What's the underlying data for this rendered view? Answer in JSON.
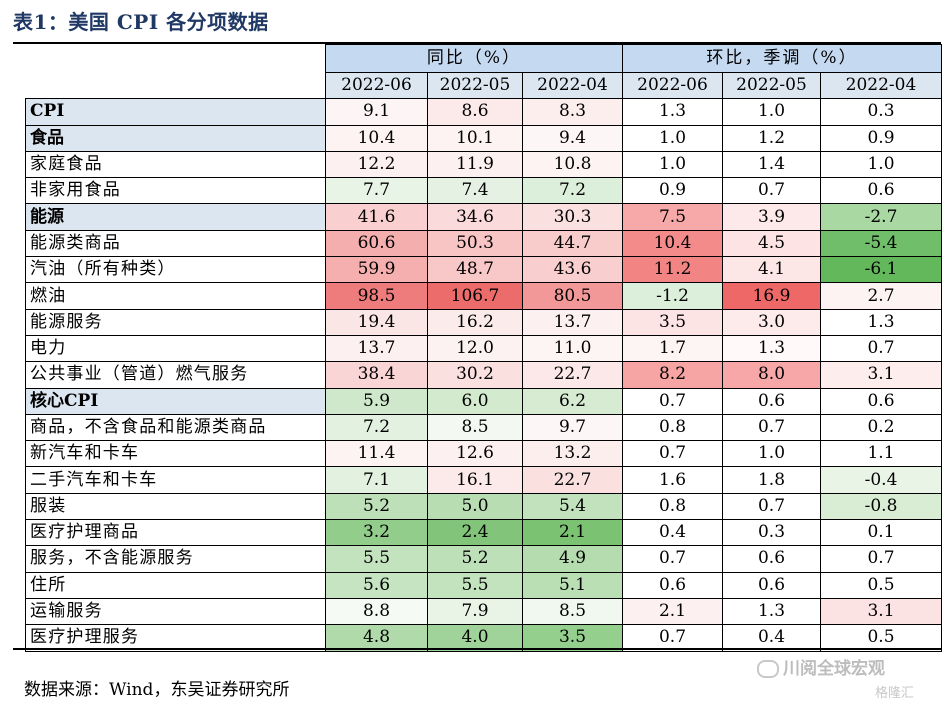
{
  "title": "表1：美国 CPI 各分项数据",
  "header": {
    "group_yoy": "同比（%）",
    "group_mom": "环比，季调（%）",
    "periods": [
      "2022-06",
      "2022-05",
      "2022-04",
      "2022-06",
      "2022-05",
      "2022-04"
    ]
  },
  "rows": [
    {
      "label": "CPI",
      "highlight": true,
      "values": [
        "9.1",
        "8.6",
        "8.3",
        "1.3",
        "1.0",
        "0.3"
      ],
      "colors": [
        "#fdf5f5",
        "#fce9e9",
        "#fdeeee",
        "#ffffff",
        "#ffffff",
        "#ffffff"
      ]
    },
    {
      "label": "食品",
      "highlight": true,
      "values": [
        "10.4",
        "10.1",
        "9.4",
        "1.0",
        "1.2",
        "0.9"
      ],
      "colors": [
        "#fdf3f3",
        "#fdf3f3",
        "#fdf6f6",
        "#ffffff",
        "#ffffff",
        "#ffffff"
      ]
    },
    {
      "label": "家庭食品",
      "highlight": false,
      "values": [
        "12.2",
        "11.9",
        "10.8",
        "1.0",
        "1.4",
        "1.0"
      ],
      "colors": [
        "#fdf0f0",
        "#fdf0f0",
        "#fdf3f3",
        "#ffffff",
        "#ffffff",
        "#ffffff"
      ]
    },
    {
      "label": "非家用食品",
      "highlight": false,
      "values": [
        "7.7",
        "7.4",
        "7.2",
        "0.9",
        "0.7",
        "0.6"
      ],
      "colors": [
        "#e8f4e6",
        "#e5f2e3",
        "#dcefda",
        "#ffffff",
        "#ffffff",
        "#ffffff"
      ]
    },
    {
      "label": "能源",
      "highlight": true,
      "values": [
        "41.6",
        "34.6",
        "30.3",
        "7.5",
        "3.9",
        "-2.7"
      ],
      "colors": [
        "#f9cfcf",
        "#fadada",
        "#fbe0e0",
        "#f7a9a9",
        "#fde9e9",
        "#a9d8a3"
      ]
    },
    {
      "label": "能源类商品",
      "highlight": false,
      "values": [
        "60.6",
        "50.3",
        "44.7",
        "10.4",
        "4.5",
        "-5.4"
      ],
      "colors": [
        "#f5aeae",
        "#f8c4c4",
        "#f9cccc",
        "#f38b8b",
        "#fde3e3",
        "#70be69"
      ]
    },
    {
      "label": "汽油（所有种类）",
      "highlight": false,
      "values": [
        "59.9",
        "48.7",
        "43.6",
        "11.2",
        "4.1",
        "-6.1"
      ],
      "colors": [
        "#f5afaf",
        "#f8c7c7",
        "#f9cece",
        "#f28484",
        "#fde6e6",
        "#63b85c"
      ]
    },
    {
      "label": "燃油",
      "highlight": false,
      "values": [
        "98.5",
        "106.7",
        "80.5",
        "-1.2",
        "16.9",
        "2.7"
      ],
      "colors": [
        "#ef7c7c",
        "#ec6b6b",
        "#f39898",
        "#dcefda",
        "#ee6868",
        "#fdf3f3"
      ]
    },
    {
      "label": "能源服务",
      "highlight": false,
      "values": [
        "19.4",
        "16.2",
        "13.7",
        "3.5",
        "3.0",
        "1.3"
      ],
      "colors": [
        "#fbe6e6",
        "#fcebeb",
        "#fdf0f0",
        "#fde4e4",
        "#fdeaea",
        "#ffffff"
      ]
    },
    {
      "label": "电力",
      "highlight": false,
      "values": [
        "13.7",
        "12.0",
        "11.0",
        "1.7",
        "1.3",
        "0.7"
      ],
      "colors": [
        "#fdf0f0",
        "#fdf2f2",
        "#fdf4f4",
        "#fdf4f4",
        "#fff9f9",
        "#ffffff"
      ]
    },
    {
      "label": "公共事业（管道）燃气服务",
      "highlight": false,
      "values": [
        "38.4",
        "30.2",
        "22.7",
        "8.2",
        "8.0",
        "3.1"
      ],
      "colors": [
        "#fad5d5",
        "#fbe0e0",
        "#fce8e8",
        "#f6a4a4",
        "#f7a7a7",
        "#fdeded"
      ]
    },
    {
      "label": "核心CPI",
      "highlight": true,
      "values": [
        "5.9",
        "6.0",
        "6.2",
        " 0.7",
        "0.6",
        "0.6"
      ],
      "colors": [
        "#cfe8cb",
        "#d3eacf",
        "#d6ebd2",
        "#ffffff",
        "#ffffff",
        "#ffffff"
      ]
    },
    {
      "label": "商品，不含食品和能源类商品",
      "highlight": false,
      "values": [
        "7.2",
        "8.5",
        "9.7",
        "0.8",
        "0.7",
        "0.2"
      ],
      "colors": [
        "#e3f1e1",
        "#f3f9f2",
        "#fdf6f6",
        "#ffffff",
        "#ffffff",
        "#ffffff"
      ]
    },
    {
      "label": "新汽车和卡车",
      "highlight": false,
      "values": [
        "11.4",
        "12.6",
        "13.2",
        "0.7",
        "1.0",
        "1.1"
      ],
      "colors": [
        "#fdf3f3",
        "#fdf0f0",
        "#fdeeee",
        "#ffffff",
        "#ffffff",
        "#ffffff"
      ]
    },
    {
      "label": "二手汽车和卡车",
      "highlight": false,
      "values": [
        "7.1",
        "16.1",
        "22.7",
        "1.6",
        "1.8",
        "-0.4"
      ],
      "colors": [
        "#e3f1e1",
        "#fceaea",
        "#fbe0e0",
        "#ffffff",
        "#ffffff",
        "#e9f4e7"
      ]
    },
    {
      "label": "服装",
      "highlight": false,
      "values": [
        "5.2",
        "5.0",
        "5.4",
        "0.8",
        "0.7",
        "-0.8"
      ],
      "colors": [
        "#bde0b8",
        "#b8ddb3",
        "#c1e2bc",
        "#ffffff",
        "#ffffff",
        "#d8edd4"
      ]
    },
    {
      "label": "医疗护理商品",
      "highlight": false,
      "values": [
        "3.2",
        "2.4",
        "2.1",
        "0.4",
        "0.3",
        "0.1"
      ],
      "colors": [
        "#93cd8c",
        "#82c57a",
        "#7bc273",
        "#ffffff",
        "#ffffff",
        "#ffffff"
      ]
    },
    {
      "label": "服务，不含能源服务",
      "highlight": false,
      "values": [
        "5.5",
        "5.2",
        "4.9",
        "0.7",
        "0.6",
        "0.7"
      ],
      "colors": [
        "#c3e3be",
        "#bde0b8",
        "#b5dcaf",
        "#ffffff",
        "#ffffff",
        "#ffffff"
      ]
    },
    {
      "label": "住所",
      "highlight": false,
      "values": [
        "5.6",
        "5.5",
        "5.1",
        "0.6",
        "0.6",
        "0.5"
      ],
      "colors": [
        "#c6e4c1",
        "#c3e3be",
        "#badfb5",
        "#ffffff",
        "#ffffff",
        "#ffffff"
      ]
    },
    {
      "label": "运输服务",
      "highlight": false,
      "values": [
        "8.8",
        "7.9",
        "8.5",
        "2.1",
        "1.3",
        "3.1"
      ],
      "colors": [
        "#f5faf4",
        "#e9f4e7",
        "#f1f8ef",
        "#fdf0f0",
        "#ffffff",
        "#fce3e3"
      ]
    },
    {
      "label": "医疗护理服务",
      "highlight": false,
      "values": [
        "4.8",
        "4.0",
        "3.5",
        "0.7",
        "0.4",
        "0.5"
      ],
      "colors": [
        "#b0daaa",
        "#a0d399",
        "#95cf8e",
        "#ffffff",
        "#ffffff",
        "#ffffff"
      ]
    }
  ],
  "source": "数据来源：Wind，东吴证券研究所",
  "watermark": "川阅全球宏观",
  "watermark2": "格隆汇"
}
